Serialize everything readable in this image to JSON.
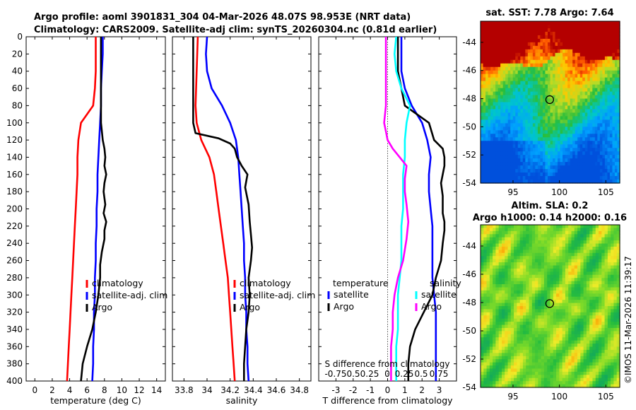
{
  "title": {
    "line1": "Argo profile: aoml 3901831_304 04-Mar-2026 48.07S 98.953E (NRT data)",
    "line2": "Climatology: CARS2009. Satellite-adj clim: synTS_20260304.nc (0.81d earlier)"
  },
  "watermark": "©IMOS 11-Mar-2026 11:39:17",
  "colors": {
    "climatology": "#ff0000",
    "satellite": "#0000ff",
    "argo": "#000000",
    "sat_s_diff": "#00ffff",
    "argo_s_diff": "#ff00ff"
  },
  "chart_data": [
    {
      "type": "line",
      "id": "temperature",
      "xlabel": "temperature (deg C)",
      "xlim": [
        -1,
        15
      ],
      "xticks": [
        "0",
        "2",
        "4",
        "6",
        "8",
        "10",
        "12",
        "14"
      ],
      "ylim": [
        0,
        400
      ],
      "yticks": [
        "0",
        "20",
        "40",
        "60",
        "80",
        "100",
        "120",
        "140",
        "160",
        "180",
        "200",
        "220",
        "240",
        "260",
        "280",
        "300",
        "320",
        "340",
        "360",
        "380",
        "400"
      ],
      "legend": [
        "climatology",
        "satellite-adj. clim",
        "Argo"
      ],
      "series": [
        {
          "name": "climatology",
          "points": [
            [
              7.0,
              0
            ],
            [
              7.0,
              20
            ],
            [
              7.0,
              40
            ],
            [
              6.9,
              60
            ],
            [
              6.7,
              80
            ],
            [
              6.0,
              90
            ],
            [
              5.3,
              100
            ],
            [
              5.0,
              120
            ],
            [
              4.9,
              140
            ],
            [
              4.9,
              160
            ],
            [
              4.8,
              180
            ],
            [
              4.7,
              200
            ],
            [
              4.6,
              220
            ],
            [
              4.5,
              240
            ],
            [
              4.4,
              260
            ],
            [
              4.3,
              280
            ],
            [
              4.2,
              300
            ],
            [
              4.1,
              320
            ],
            [
              4.0,
              340
            ],
            [
              3.9,
              360
            ],
            [
              3.8,
              380
            ],
            [
              3.7,
              400
            ]
          ]
        },
        {
          "name": "satellite-adj. clim",
          "points": [
            [
              7.8,
              0
            ],
            [
              7.8,
              20
            ],
            [
              7.7,
              40
            ],
            [
              7.6,
              60
            ],
            [
              7.6,
              80
            ],
            [
              7.5,
              100
            ],
            [
              7.4,
              120
            ],
            [
              7.3,
              140
            ],
            [
              7.2,
              160
            ],
            [
              7.2,
              180
            ],
            [
              7.1,
              200
            ],
            [
              7.1,
              220
            ],
            [
              7.0,
              240
            ],
            [
              7.0,
              260
            ],
            [
              6.9,
              280
            ],
            [
              6.9,
              300
            ],
            [
              6.8,
              320
            ],
            [
              6.8,
              340
            ],
            [
              6.7,
              360
            ],
            [
              6.7,
              380
            ],
            [
              6.6,
              400
            ]
          ]
        },
        {
          "name": "Argo",
          "points": [
            [
              7.6,
              0
            ],
            [
              7.6,
              20
            ],
            [
              7.6,
              40
            ],
            [
              7.6,
              60
            ],
            [
              7.6,
              80
            ],
            [
              7.6,
              100
            ],
            [
              7.8,
              120
            ],
            [
              8.0,
              130
            ],
            [
              8.1,
              140
            ],
            [
              8.0,
              150
            ],
            [
              8.2,
              160
            ],
            [
              8.0,
              170
            ],
            [
              7.9,
              180
            ],
            [
              8.1,
              195
            ],
            [
              7.9,
              205
            ],
            [
              8.2,
              215
            ],
            [
              8.0,
              225
            ],
            [
              8.0,
              235
            ],
            [
              7.7,
              250
            ],
            [
              7.5,
              265
            ],
            [
              7.5,
              280
            ],
            [
              7.3,
              300
            ],
            [
              7.0,
              320
            ],
            [
              6.6,
              340
            ],
            [
              6.0,
              360
            ],
            [
              5.5,
              380
            ],
            [
              5.3,
              400
            ]
          ]
        }
      ]
    },
    {
      "type": "line",
      "id": "salinity",
      "xlabel": "salinity",
      "xlim": [
        33.7,
        34.9
      ],
      "xticks": [
        "33.8",
        "34",
        "34.2",
        "34.4",
        "34.6",
        "34.8"
      ],
      "ylim": [
        0,
        400
      ],
      "legend": [
        "climatology",
        "satellite-adj. clim",
        "Argo"
      ],
      "series": [
        {
          "name": "climatology",
          "points": [
            [
              33.92,
              0
            ],
            [
              33.91,
              40
            ],
            [
              33.9,
              80
            ],
            [
              33.91,
              100
            ],
            [
              33.95,
              120
            ],
            [
              34.02,
              140
            ],
            [
              34.06,
              160
            ],
            [
              34.08,
              180
            ],
            [
              34.1,
              200
            ],
            [
              34.12,
              220
            ],
            [
              34.14,
              240
            ],
            [
              34.16,
              260
            ],
            [
              34.18,
              280
            ],
            [
              34.19,
              300
            ],
            [
              34.2,
              320
            ],
            [
              34.21,
              340
            ],
            [
              34.22,
              360
            ],
            [
              34.23,
              380
            ],
            [
              34.24,
              400
            ]
          ]
        },
        {
          "name": "satellite-adj. clim",
          "points": [
            [
              34.0,
              0
            ],
            [
              33.99,
              20
            ],
            [
              34.0,
              40
            ],
            [
              34.04,
              60
            ],
            [
              34.13,
              80
            ],
            [
              34.2,
              100
            ],
            [
              34.25,
              120
            ],
            [
              34.27,
              140
            ],
            [
              34.28,
              160
            ],
            [
              34.29,
              180
            ],
            [
              34.3,
              200
            ],
            [
              34.31,
              220
            ],
            [
              34.32,
              240
            ],
            [
              34.32,
              260
            ],
            [
              34.33,
              280
            ],
            [
              34.33,
              300
            ],
            [
              34.34,
              320
            ],
            [
              34.34,
              340
            ],
            [
              34.35,
              360
            ],
            [
              34.35,
              380
            ],
            [
              34.36,
              400
            ]
          ]
        },
        {
          "name": "Argo",
          "points": [
            [
              33.88,
              0
            ],
            [
              33.88,
              40
            ],
            [
              33.88,
              80
            ],
            [
              33.88,
              100
            ],
            [
              33.9,
              112
            ],
            [
              34.1,
              118
            ],
            [
              34.2,
              124
            ],
            [
              34.24,
              130
            ],
            [
              34.26,
              140
            ],
            [
              34.3,
              150
            ],
            [
              34.35,
              160
            ],
            [
              34.33,
              175
            ],
            [
              34.36,
              195
            ],
            [
              34.37,
              215
            ],
            [
              34.38,
              230
            ],
            [
              34.39,
              245
            ],
            [
              34.38,
              260
            ],
            [
              34.36,
              280
            ],
            [
              34.37,
              300
            ],
            [
              34.36,
              320
            ],
            [
              34.34,
              340
            ],
            [
              34.33,
              360
            ],
            [
              34.32,
              380
            ],
            [
              34.32,
              400
            ]
          ]
        }
      ]
    },
    {
      "type": "line",
      "id": "difference",
      "xlabel": "T difference from climatology",
      "xlim": [
        -4,
        4
      ],
      "xticks": [
        "-3",
        "-2",
        "-1",
        "0",
        "1",
        "2",
        "3"
      ],
      "s_axis_label": "S difference from climatology",
      "s_ticks": [
        "-0.75",
        "0.5",
        "0.25",
        "0",
        "0.25",
        "0.5",
        "0.75"
      ],
      "ylim": [
        0,
        400
      ],
      "legend_temperature": {
        "title": "temperature",
        "items": [
          "satellite",
          "Argo"
        ]
      },
      "legend_salinity": {
        "title": "salinity",
        "items": [
          "satellite",
          "Argo"
        ]
      },
      "series": [
        {
          "name": "T satellite",
          "points": [
            [
              0.8,
              0
            ],
            [
              0.8,
              20
            ],
            [
              0.8,
              40
            ],
            [
              1.0,
              60
            ],
            [
              1.4,
              80
            ],
            [
              2.0,
              100
            ],
            [
              2.3,
              120
            ],
            [
              2.5,
              140
            ],
            [
              2.4,
              160
            ],
            [
              2.4,
              180
            ],
            [
              2.5,
              200
            ],
            [
              2.6,
              220
            ],
            [
              2.6,
              240
            ],
            [
              2.6,
              260
            ],
            [
              2.6,
              280
            ],
            [
              2.7,
              300
            ],
            [
              2.8,
              320
            ],
            [
              2.8,
              340
            ],
            [
              2.8,
              360
            ],
            [
              2.8,
              380
            ],
            [
              2.8,
              400
            ]
          ]
        },
        {
          "name": "T Argo",
          "points": [
            [
              0.6,
              0
            ],
            [
              0.6,
              20
            ],
            [
              0.6,
              40
            ],
            [
              0.8,
              60
            ],
            [
              1.0,
              80
            ],
            [
              1.7,
              90
            ],
            [
              2.4,
              100
            ],
            [
              2.7,
              120
            ],
            [
              3.2,
              130
            ],
            [
              3.3,
              140
            ],
            [
              3.3,
              150
            ],
            [
              3.2,
              160
            ],
            [
              3.1,
              170
            ],
            [
              3.2,
              185
            ],
            [
              3.2,
              205
            ],
            [
              3.3,
              215
            ],
            [
              3.3,
              225
            ],
            [
              3.2,
              240
            ],
            [
              3.1,
              260
            ],
            [
              2.8,
              280
            ],
            [
              2.6,
              300
            ],
            [
              2.1,
              320
            ],
            [
              1.6,
              340
            ],
            [
              1.3,
              360
            ],
            [
              1.2,
              380
            ],
            [
              1.2,
              400
            ]
          ]
        },
        {
          "name": "S satellite",
          "points": [
            [
              0.5,
              0
            ],
            [
              0.4,
              20
            ],
            [
              0.5,
              40
            ],
            [
              0.8,
              60
            ],
            [
              1.3,
              80
            ],
            [
              1.1,
              100
            ],
            [
              1.0,
              120
            ],
            [
              1.0,
              140
            ],
            [
              0.9,
              160
            ],
            [
              0.9,
              180
            ],
            [
              0.9,
              200
            ],
            [
              0.8,
              220
            ],
            [
              0.8,
              240
            ],
            [
              0.8,
              260
            ],
            [
              0.7,
              280
            ],
            [
              0.6,
              300
            ],
            [
              0.6,
              320
            ],
            [
              0.6,
              340
            ],
            [
              0.5,
              360
            ],
            [
              0.5,
              380
            ],
            [
              0.5,
              400
            ]
          ]
        },
        {
          "name": "S Argo",
          "points": [
            [
              -0.1,
              0
            ],
            [
              -0.1,
              40
            ],
            [
              -0.1,
              80
            ],
            [
              -0.2,
              100
            ],
            [
              -0.1,
              110
            ],
            [
              0.0,
              120
            ],
            [
              0.3,
              130
            ],
            [
              0.7,
              140
            ],
            [
              1.1,
              150
            ],
            [
              1.0,
              165
            ],
            [
              1.0,
              180
            ],
            [
              1.1,
              195
            ],
            [
              1.2,
              215
            ],
            [
              1.1,
              235
            ],
            [
              0.9,
              260
            ],
            [
              0.6,
              280
            ],
            [
              0.4,
              300
            ],
            [
              0.3,
              320
            ],
            [
              0.3,
              340
            ],
            [
              0.2,
              360
            ],
            [
              0.2,
              380
            ],
            [
              0.2,
              400
            ]
          ]
        }
      ]
    },
    {
      "type": "heatmap",
      "id": "sst-map",
      "title": "sat. SST: 7.78 Argo: 7.64",
      "xticks": [
        "95",
        "100",
        "105"
      ],
      "yticks": [
        "-44",
        "-46",
        "-48",
        "-50",
        "-52",
        "-54"
      ],
      "xlim": [
        91.5,
        106.5
      ],
      "ylim": [
        -54,
        -42.5
      ],
      "marker": {
        "lon": 98.953,
        "lat": -48.07
      }
    },
    {
      "type": "heatmap",
      "id": "sla-map",
      "title_line1": "Altim. SLA: 0.2",
      "title_line2": "Argo h1000: 0.14 h2000: 0.16",
      "xticks": [
        "95",
        "100",
        "105"
      ],
      "yticks": [
        "-44",
        "-46",
        "-48",
        "-50",
        "-52",
        "-54"
      ],
      "xlim": [
        91.5,
        106.5
      ],
      "ylim": [
        -54,
        -42.5
      ],
      "marker": {
        "lon": 98.953,
        "lat": -48.07
      }
    }
  ]
}
